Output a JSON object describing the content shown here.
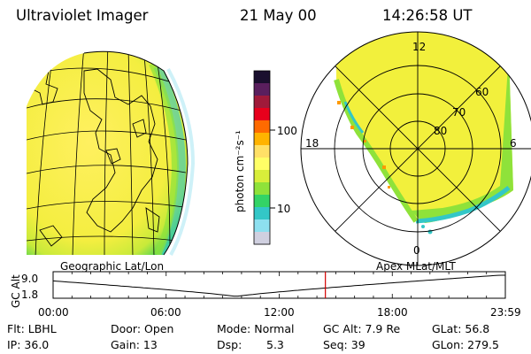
{
  "header": {
    "instrument": "Ultraviolet Imager",
    "date": "21 May 00",
    "time": "14:26:58 UT"
  },
  "colorbar": {
    "label": "photon cm⁻²s⁻¹",
    "tick_labels": [
      "100",
      "10"
    ],
    "colors": [
      "#1a0f2e",
      "#5a1f5e",
      "#a01a3a",
      "#e8001c",
      "#ff6a00",
      "#ffb300",
      "#ffe066",
      "#ffff66",
      "#d8ee3a",
      "#8fe23a",
      "#33d466",
      "#33c7c7",
      "#8de0f0",
      "#d0d0e0"
    ]
  },
  "left_map": {
    "label": "Geographic Lat/Lon"
  },
  "right_map": {
    "label": "Apex MLat/MLT",
    "mlt_labels": {
      "top": "12",
      "left": "18",
      "right": "6",
      "bottom": "0"
    },
    "lat_labels": [
      "60",
      "70",
      "80"
    ]
  },
  "altitude_plot": {
    "ylabel": "GC Alt",
    "yticks": [
      "9.0",
      "1.8"
    ],
    "xticks": [
      "00:00",
      "06:00",
      "12:00",
      "18:00",
      "23:59"
    ],
    "current_time_hours": 14.45
  },
  "status": {
    "filter": "Flt: LBHL",
    "door": "Door: Open",
    "mode": "Mode: Normal",
    "gc_alt": "GC Alt: 7.9 Re",
    "glat": "GLat: 56.8",
    "ip": "IP: 36.0",
    "gain": "Gain: 13",
    "dsp_label": "Dsp:",
    "dsp_value": "5.3",
    "seq": "Seq: 39",
    "glon": "GLon: 279.5"
  },
  "colors": {
    "earth_yellow": "#f2f03c",
    "earth_green": "#8fe23a",
    "earth_cyan": "#33c7c7",
    "marker_red": "#d40000"
  }
}
